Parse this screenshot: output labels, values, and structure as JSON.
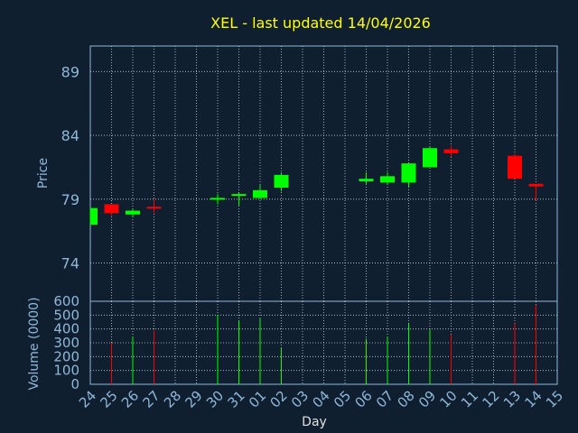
{
  "chart_data": [
    {
      "type": "candlestick",
      "title": "XEL - last updated 14/04/2026",
      "ylabel": "Price",
      "xlabel": "Day",
      "ylim": [
        71,
        91
      ],
      "yticks": [
        74,
        79,
        84,
        89
      ],
      "grid": true,
      "colors": {
        "up": "#00ff00",
        "down": "#ff0000",
        "title": "#ffff00",
        "axis_text": "#8fb8d8",
        "grid": "#c8d0d8"
      },
      "categories": [
        "24",
        "25",
        "26",
        "27",
        "28",
        "29",
        "30",
        "31",
        "01",
        "02",
        "03",
        "04",
        "05",
        "06",
        "07",
        "08",
        "09",
        "10",
        "11",
        "12",
        "13",
        "14",
        "15"
      ],
      "candles": [
        {
          "day": "24",
          "open": 77.0,
          "high": 78.3,
          "low": 77.0,
          "close": 78.3
        },
        {
          "day": "25",
          "open": 78.6,
          "high": 78.6,
          "low": 77.7,
          "close": 77.9
        },
        {
          "day": "26",
          "open": 77.8,
          "high": 78.2,
          "low": 77.6,
          "close": 78.1
        },
        {
          "day": "27",
          "open": 78.4,
          "high": 79.0,
          "low": 77.9,
          "close": 78.3
        },
        {
          "day": "30",
          "open": 79.0,
          "high": 79.4,
          "low": 78.6,
          "close": 79.1
        },
        {
          "day": "31",
          "open": 79.3,
          "high": 79.5,
          "low": 78.5,
          "close": 79.4
        },
        {
          "day": "01",
          "open": 79.1,
          "high": 80.1,
          "low": 79.0,
          "close": 79.7
        },
        {
          "day": "02",
          "open": 79.9,
          "high": 81.1,
          "low": 79.6,
          "close": 80.9
        },
        {
          "day": "06",
          "open": 80.4,
          "high": 81.1,
          "low": 80.2,
          "close": 80.6
        },
        {
          "day": "07",
          "open": 80.3,
          "high": 81.1,
          "low": 80.2,
          "close": 80.8
        },
        {
          "day": "08",
          "open": 80.3,
          "high": 81.8,
          "low": 79.9,
          "close": 81.8
        },
        {
          "day": "09",
          "open": 81.5,
          "high": 83.1,
          "low": 81.5,
          "close": 83.0
        },
        {
          "day": "10",
          "open": 82.9,
          "high": 83.2,
          "low": 82.3,
          "close": 82.6
        },
        {
          "day": "13",
          "open": 82.4,
          "high": 82.5,
          "low": 80.6,
          "close": 80.6
        },
        {
          "day": "14",
          "open": 80.2,
          "high": 80.2,
          "low": 78.9,
          "close": 80.0
        }
      ]
    },
    {
      "type": "bar",
      "ylabel": "Volume (0000)",
      "ylim": [
        0,
        600
      ],
      "yticks": [
        0,
        100,
        200,
        300,
        400,
        500,
        600
      ],
      "categories": [
        "24",
        "25",
        "26",
        "27",
        "28",
        "29",
        "30",
        "31",
        "01",
        "02",
        "03",
        "04",
        "05",
        "06",
        "07",
        "08",
        "09",
        "10",
        "11",
        "12",
        "13",
        "14",
        "15"
      ],
      "bars": [
        {
          "day": "25",
          "value": 300,
          "direction": "down"
        },
        {
          "day": "26",
          "value": 345,
          "direction": "up"
        },
        {
          "day": "27",
          "value": 390,
          "direction": "down"
        },
        {
          "day": "30",
          "value": 500,
          "direction": "up"
        },
        {
          "day": "31",
          "value": 460,
          "direction": "up"
        },
        {
          "day": "01",
          "value": 475,
          "direction": "up"
        },
        {
          "day": "02",
          "value": 265,
          "direction": "up"
        },
        {
          "day": "06",
          "value": 330,
          "direction": "up"
        },
        {
          "day": "07",
          "value": 345,
          "direction": "up"
        },
        {
          "day": "08",
          "value": 440,
          "direction": "up"
        },
        {
          "day": "09",
          "value": 395,
          "direction": "up"
        },
        {
          "day": "10",
          "value": 360,
          "direction": "down"
        },
        {
          "day": "13",
          "value": 440,
          "direction": "down"
        },
        {
          "day": "14",
          "value": 575,
          "direction": "down"
        }
      ]
    }
  ]
}
